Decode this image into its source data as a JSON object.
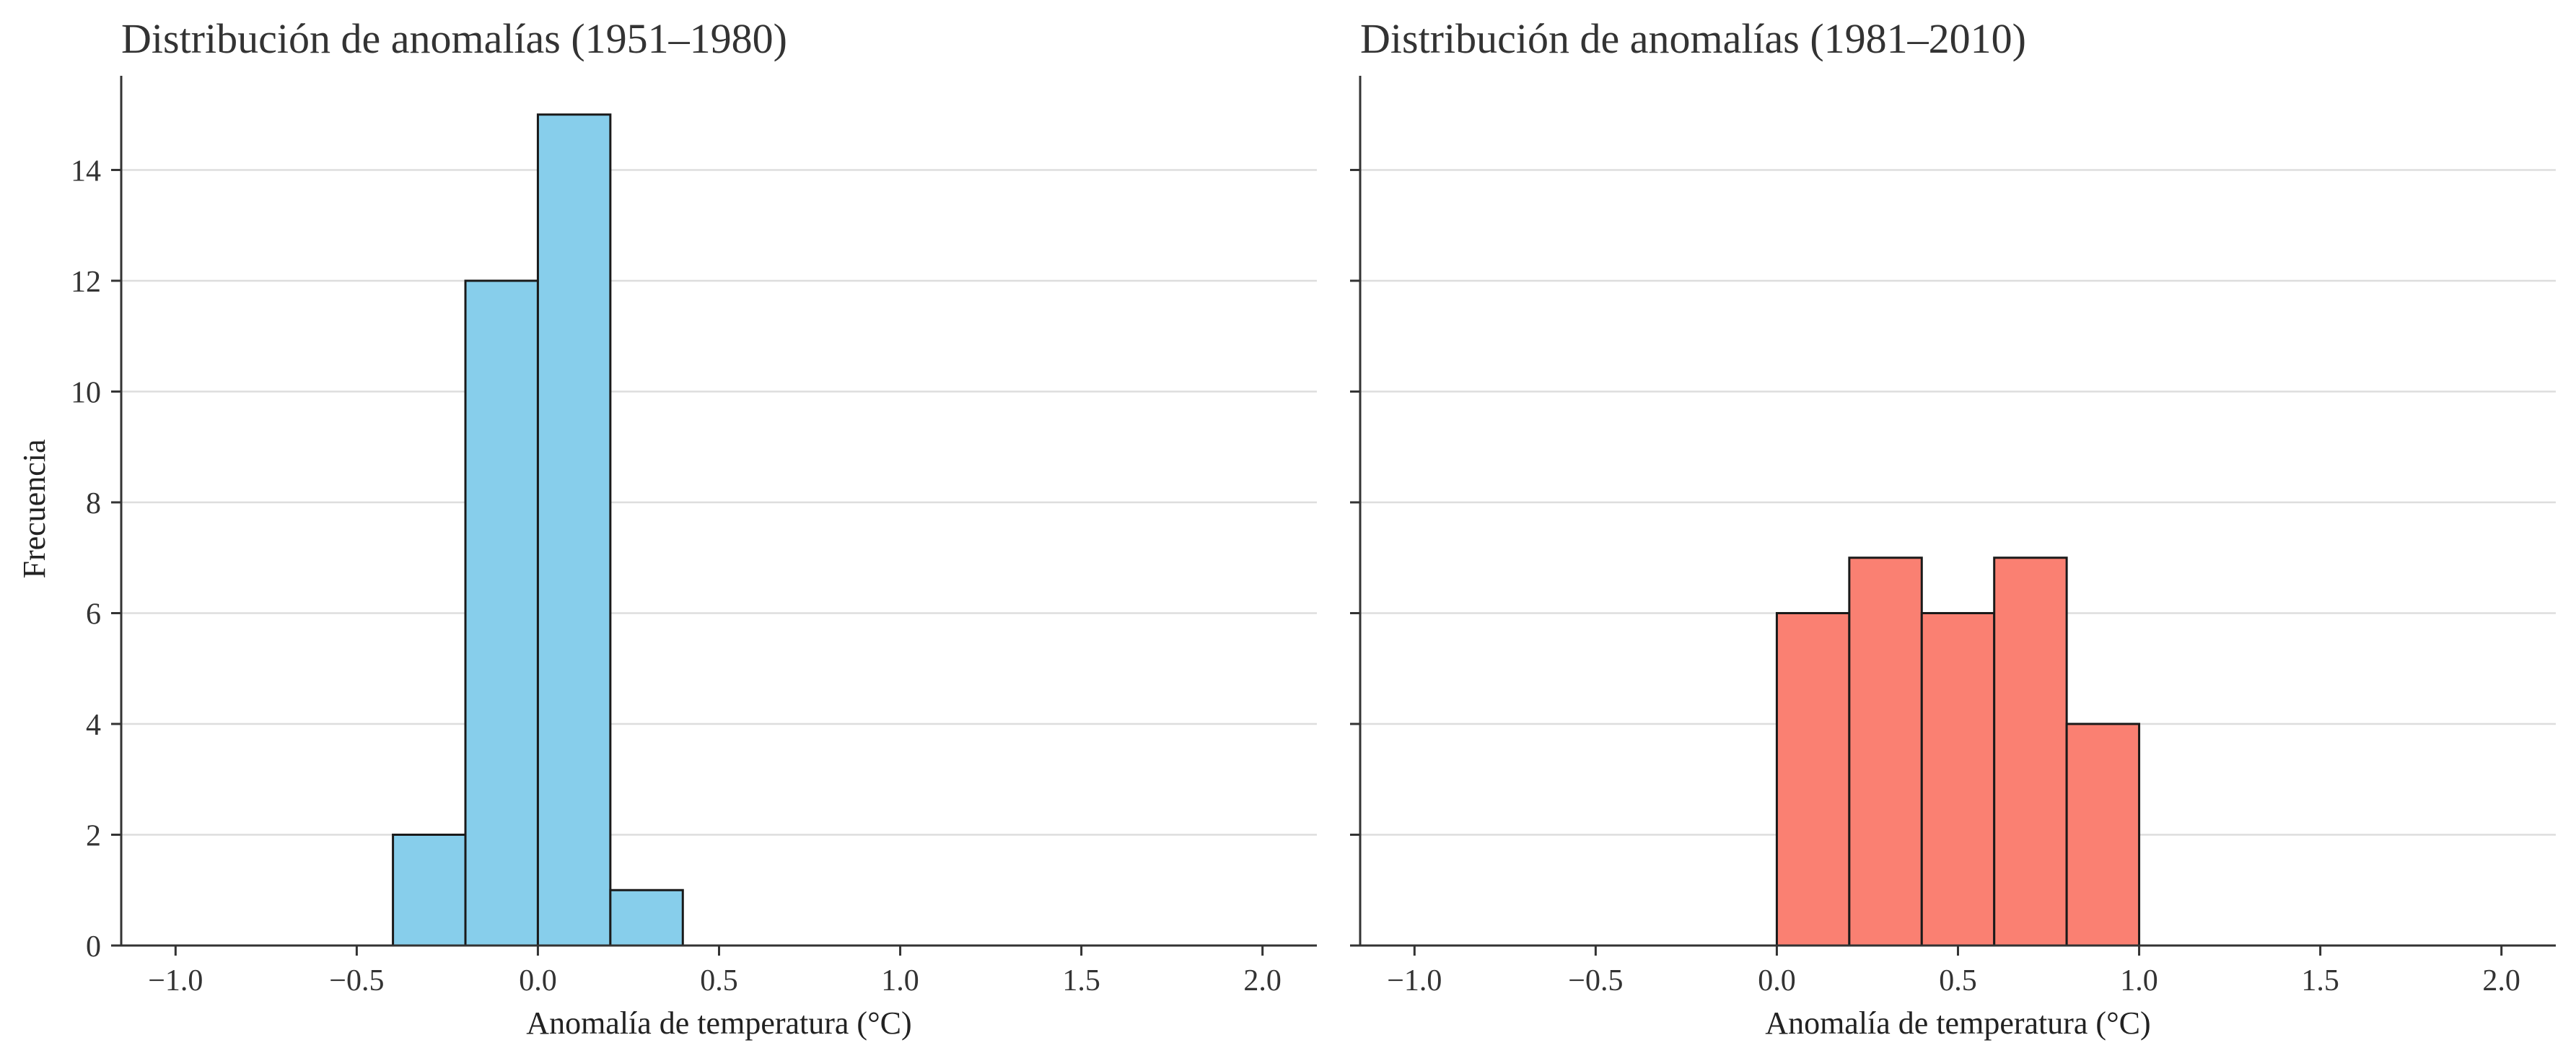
{
  "colors": {
    "background": "#ffffff",
    "axis": "#333333",
    "grid": "#dddddd",
    "bar_edge": "#1a1a1a"
  },
  "figure": {
    "ylabel": "Frecuencia"
  },
  "chart_data": [
    {
      "type": "bar",
      "title": "Distribución de anomalías (1951–1980)",
      "xlabel": "Anomalía de temperatura (°C)",
      "ylabel": "Frecuencia",
      "xlim": [
        -1.15,
        2.15
      ],
      "ylim": [
        0,
        15.7
      ],
      "xticks": [
        -1.0,
        -0.5,
        0.0,
        0.5,
        1.0,
        1.5,
        2.0
      ],
      "xtick_labels": [
        "−1.0",
        "−0.5",
        "0.0",
        "0.5",
        "1.0",
        "1.5",
        "2.0"
      ],
      "yticks": [
        0,
        2,
        4,
        6,
        8,
        10,
        12,
        14
      ],
      "ytick_labels": [
        "0",
        "2",
        "4",
        "6",
        "8",
        "10",
        "12",
        "14"
      ],
      "grid": "horizontal",
      "color": "#87ceeb",
      "bins": [
        {
          "start": -0.4,
          "end": -0.2,
          "count": 2
        },
        {
          "start": -0.2,
          "end": 0.0,
          "count": 12
        },
        {
          "start": 0.0,
          "end": 0.2,
          "count": 15
        },
        {
          "start": 0.2,
          "end": 0.4,
          "count": 1
        }
      ]
    },
    {
      "type": "bar",
      "title": "Distribución de anomalías (1981–2010)",
      "xlabel": "Anomalía de temperatura (°C)",
      "ylabel": "",
      "xlim": [
        -1.15,
        2.15
      ],
      "ylim": [
        0,
        15.7
      ],
      "xticks": [
        -1.0,
        -0.5,
        0.0,
        0.5,
        1.0,
        1.5,
        2.0
      ],
      "xtick_labels": [
        "−1.0",
        "−0.5",
        "0.0",
        "0.5",
        "1.0",
        "1.5",
        "2.0"
      ],
      "yticks": [
        0,
        2,
        4,
        6,
        8,
        10,
        12,
        14
      ],
      "ytick_labels": [],
      "grid": "horizontal",
      "color": "#fa8072",
      "bins": [
        {
          "start": 0.0,
          "end": 0.2,
          "count": 6
        },
        {
          "start": 0.2,
          "end": 0.4,
          "count": 7
        },
        {
          "start": 0.4,
          "end": 0.6,
          "count": 6
        },
        {
          "start": 0.6,
          "end": 0.8,
          "count": 7
        },
        {
          "start": 0.8,
          "end": 1.0,
          "count": 4
        }
      ]
    }
  ]
}
